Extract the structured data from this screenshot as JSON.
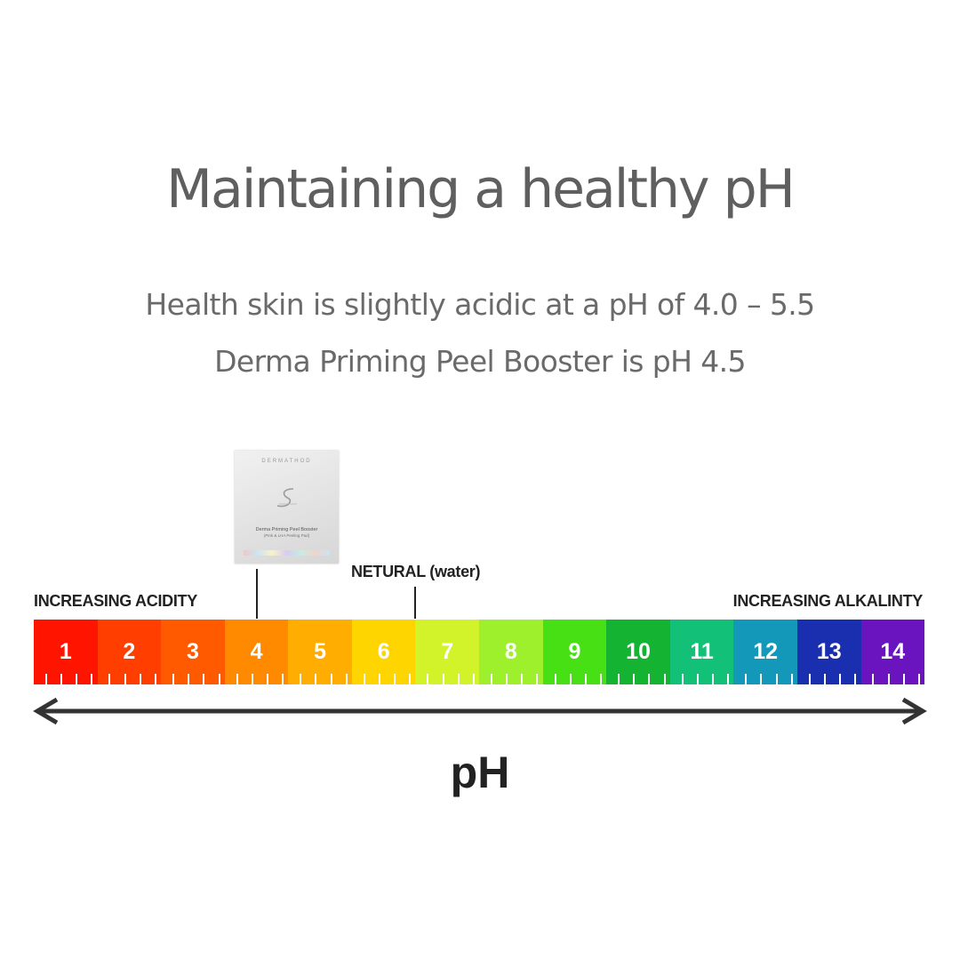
{
  "title": "Maintaining a healthy pH",
  "subtitle_lines": [
    "Health skin is slightly acidic at a pH of 4.0 – 5.5",
    "Derma Priming Peel Booster is pH 4.5"
  ],
  "labels": {
    "acidity": "INCREASING ACIDITY",
    "alkalinity": "INCREASING ALKALINTY",
    "neutral_main": "NETURAL",
    "neutral_sub": "(water)",
    "axis": "pH"
  },
  "product": {
    "brand": "DERMATHOD",
    "name": "Derma Priming Peel Booster",
    "desc": "(Pink & LHA Peeling Pad)",
    "marker_ph": 4.5
  },
  "neutral_ph": 7,
  "scale": [
    {
      "value": "1",
      "color": "#ff1400"
    },
    {
      "value": "2",
      "color": "#ff3e00"
    },
    {
      "value": "3",
      "color": "#ff5a00"
    },
    {
      "value": "4",
      "color": "#ff8a00"
    },
    {
      "value": "5",
      "color": "#ffad00"
    },
    {
      "value": "6",
      "color": "#ffd500"
    },
    {
      "value": "7",
      "color": "#d2f22a"
    },
    {
      "value": "8",
      "color": "#9ef02c"
    },
    {
      "value": "9",
      "color": "#46e014"
    },
    {
      "value": "10",
      "color": "#14b432"
    },
    {
      "value": "11",
      "color": "#12c078"
    },
    {
      "value": "12",
      "color": "#1398b9"
    },
    {
      "value": "13",
      "color": "#1a2fb0"
    },
    {
      "value": "14",
      "color": "#6a14c0"
    }
  ]
}
